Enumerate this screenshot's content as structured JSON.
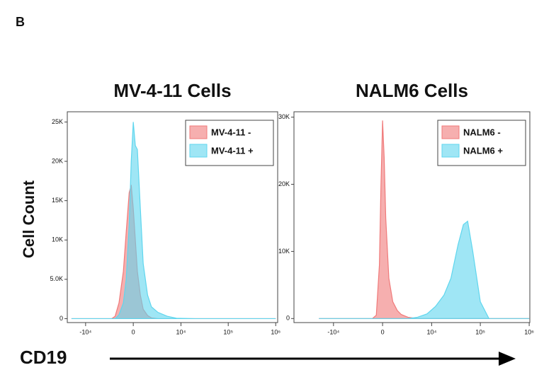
{
  "panel": "B",
  "y_label": "Cell Count",
  "x_label": "CD19",
  "chart_data": [
    {
      "type": "area",
      "title": "MV-4-11 Cells",
      "xscale": "biexponential",
      "legend": "upper right",
      "grid": false,
      "x": [
        -20000,
        -4000,
        -2500,
        -2000,
        -1500,
        -1000,
        -700,
        -400,
        -200,
        0,
        200,
        400,
        700,
        1000,
        1500,
        2000,
        3000,
        5000,
        8000,
        20000,
        1000000
      ],
      "series": [
        {
          "name": "MV-4-11 -",
          "color": "#f07a7a",
          "values": [
            0,
            0,
            0,
            300,
            2000,
            6000,
            11000,
            16000,
            17000,
            14000,
            10000,
            6000,
            3000,
            1200,
            400,
            100,
            0,
            0,
            0,
            0,
            0
          ]
        },
        {
          "name": "MV-4-11 +",
          "color": "#5fd6ee",
          "values": [
            0,
            0,
            0,
            0,
            500,
            2000,
            5000,
            12000,
            20000,
            25000,
            22000,
            21500,
            14000,
            7000,
            3000,
            1500,
            800,
            300,
            50,
            0,
            0
          ]
        }
      ],
      "xlim": [
        -24500,
        1100000
      ],
      "xticks": [
        {
          "value": -10000,
          "label": "-10⁴"
        },
        0,
        {
          "value": 10000,
          "label": "10⁴"
        },
        {
          "value": 100000,
          "label": "10⁵"
        },
        {
          "value": 1000000,
          "label": "10⁶"
        }
      ],
      "ylim": [
        -500,
        26300
      ],
      "yticks": [
        0,
        {
          "value": 5000,
          "label": "5.0K"
        },
        {
          "value": 10000,
          "label": "10K"
        },
        {
          "value": 15000,
          "label": "15K"
        },
        {
          "value": 20000,
          "label": "20K"
        },
        {
          "value": 25000,
          "label": "25K"
        }
      ]
    },
    {
      "type": "area",
      "title": "NALM6 Cells",
      "xscale": "biexponential",
      "legend": "upper right",
      "grid": false,
      "x": [
        -20000,
        -1000,
        -600,
        -300,
        -150,
        0,
        150,
        300,
        600,
        1000,
        1500,
        2000,
        3000,
        5000,
        8000,
        12000,
        18000,
        25000,
        35000,
        45000,
        55000,
        70000,
        100000,
        150000,
        1000000
      ],
      "series": [
        {
          "name": "NALM6 -",
          "color": "#f07a7a",
          "values": [
            0,
            0,
            500,
            8000,
            20000,
            29500,
            24000,
            15000,
            6000,
            2500,
            1200,
            600,
            200,
            0,
            0,
            0,
            0,
            0,
            0,
            0,
            0,
            0,
            0,
            0,
            0
          ]
        },
        {
          "name": "NALM6 +",
          "color": "#5fd6ee",
          "values": [
            0,
            0,
            0,
            0,
            0,
            0,
            0,
            0,
            0,
            0,
            0,
            0,
            0,
            200,
            700,
            1800,
            3500,
            6000,
            11000,
            14000,
            14500,
            10000,
            2500,
            0,
            0
          ]
        }
      ],
      "xlim": [
        -65000,
        1030000
      ],
      "xticks": [
        {
          "value": -10000,
          "label": "-10⁴"
        },
        0,
        {
          "value": 10000,
          "label": "10⁴"
        },
        {
          "value": 100000,
          "label": "10⁵"
        },
        {
          "value": 1000000,
          "label": "10⁶"
        }
      ],
      "ylim": [
        -600,
        30800
      ],
      "yticks": [
        0,
        {
          "value": 10000,
          "label": "10K"
        },
        {
          "value": 20000,
          "label": "20K"
        },
        {
          "value": 30000,
          "label": "30K"
        }
      ]
    }
  ]
}
